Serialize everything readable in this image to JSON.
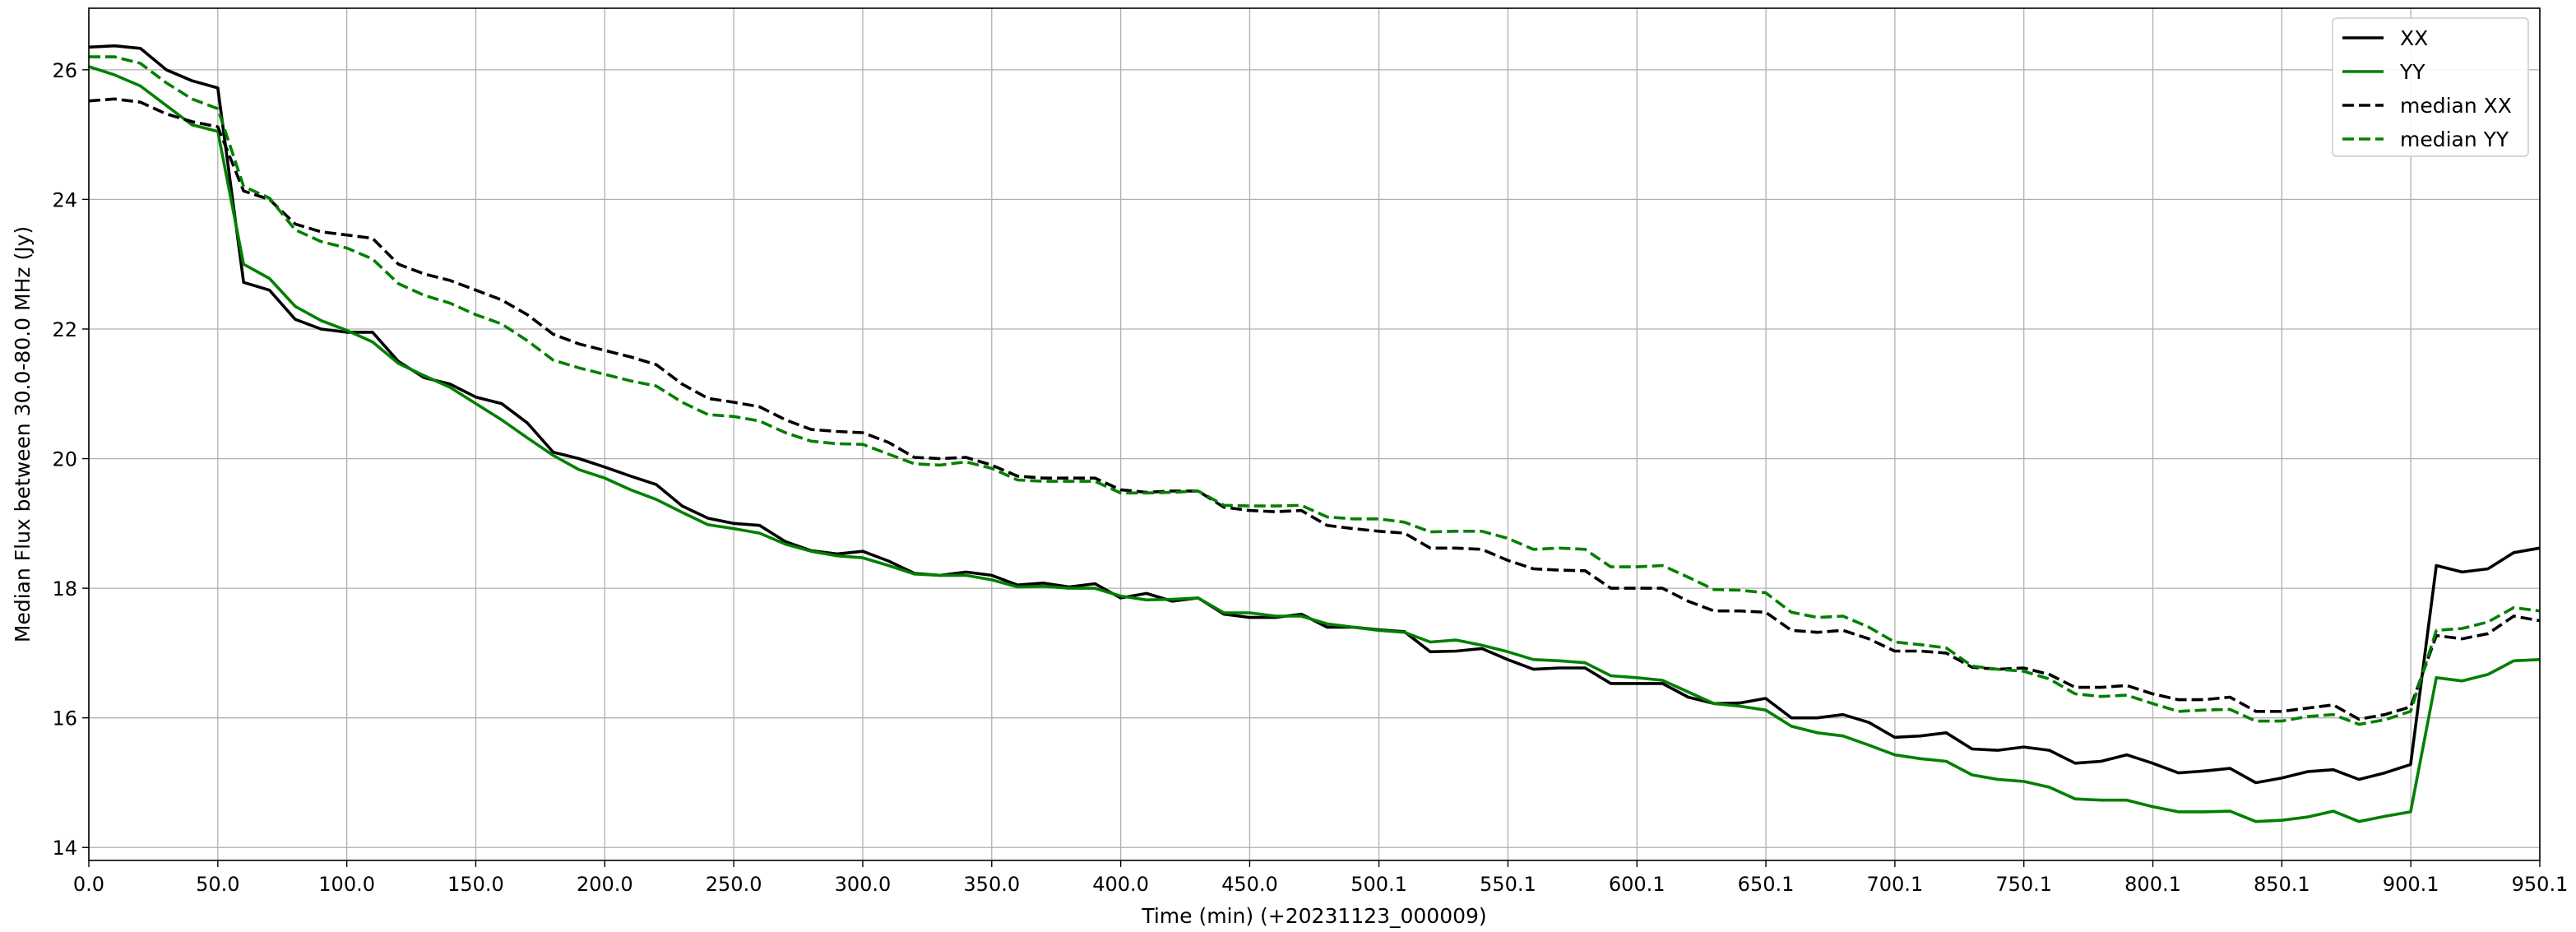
{
  "chart_data": {
    "type": "line",
    "xlabel": "Time (min) (+20231123_000009)",
    "ylabel": "Median Flux between 30.0-80.0 MHz  (Jy)",
    "xlim": [
      0,
      950.1
    ],
    "ylim": [
      13.8,
      26.95
    ],
    "grid": true,
    "legend_position": "top-right",
    "x_ticks": [
      0.0,
      50.0,
      100.0,
      150.0,
      200.0,
      250.0,
      300.0,
      350.0,
      400.0,
      450.0,
      500.1,
      550.1,
      600.1,
      650.1,
      700.1,
      750.1,
      800.1,
      850.1,
      900.1,
      950.1
    ],
    "x_tick_labels": [
      "0.0",
      "50.0",
      "100.0",
      "150.0",
      "200.0",
      "250.0",
      "300.0",
      "350.0",
      "400.0",
      "450.0",
      "500.1",
      "550.1",
      "600.1",
      "650.1",
      "700.1",
      "750.1",
      "800.1",
      "850.1",
      "900.1",
      "950.1"
    ],
    "y_ticks": [
      14,
      16,
      18,
      20,
      22,
      24,
      26
    ],
    "y_tick_labels": [
      "14",
      "16",
      "18",
      "20",
      "22",
      "24",
      "26"
    ],
    "x": [
      0,
      10,
      20,
      30,
      40,
      50,
      60,
      70,
      80,
      90,
      100,
      110,
      120,
      130,
      140,
      150,
      160,
      170,
      180,
      190,
      200,
      210,
      220,
      230,
      240,
      250,
      260,
      270,
      280,
      290,
      300,
      310,
      320,
      330,
      340,
      350,
      360,
      370,
      380,
      390,
      400,
      410,
      420,
      430,
      440,
      450,
      460,
      470,
      480,
      490,
      500,
      510,
      520,
      530,
      540,
      550,
      560,
      570,
      580,
      590,
      600,
      610,
      620,
      630,
      640,
      650,
      660,
      670,
      680,
      690,
      700,
      710,
      720,
      730,
      740,
      750,
      760,
      770,
      780,
      790,
      800,
      810,
      820,
      830,
      840,
      850,
      860,
      870,
      880,
      890,
      900,
      910,
      920,
      930,
      940,
      950
    ],
    "series": [
      {
        "name": "XX",
        "color": "#000000",
        "dash": "solid",
        "values": [
          26.35,
          26.37,
          26.33,
          26.0,
          25.83,
          25.72,
          22.72,
          22.6,
          22.15,
          22.0,
          21.95,
          21.95,
          21.5,
          21.25,
          21.15,
          20.95,
          20.85,
          20.55,
          20.1,
          20.0,
          19.87,
          19.73,
          19.6,
          19.27,
          19.08,
          19.0,
          18.97,
          18.72,
          18.58,
          18.53,
          18.57,
          18.42,
          18.23,
          18.2,
          18.25,
          18.2,
          18.05,
          18.08,
          18.02,
          18.07,
          17.85,
          17.92,
          17.8,
          17.85,
          17.6,
          17.55,
          17.55,
          17.6,
          17.4,
          17.4,
          17.36,
          17.33,
          17.02,
          17.03,
          17.07,
          16.9,
          16.75,
          16.77,
          16.77,
          16.53,
          16.53,
          16.53,
          16.32,
          16.22,
          16.23,
          16.3,
          16.0,
          16.0,
          16.05,
          15.93,
          15.7,
          15.72,
          15.77,
          15.52,
          15.5,
          15.55,
          15.5,
          15.3,
          15.33,
          15.43,
          15.3,
          15.15,
          15.18,
          15.22,
          15.0,
          15.07,
          15.17,
          15.2,
          15.05,
          15.15,
          15.28,
          18.35,
          18.25,
          18.3,
          18.55,
          18.62
        ]
      },
      {
        "name": "YY",
        "color": "#008000",
        "dash": "solid",
        "values": [
          26.05,
          25.92,
          25.75,
          25.45,
          25.15,
          25.05,
          23.0,
          22.78,
          22.35,
          22.13,
          21.98,
          21.8,
          21.47,
          21.28,
          21.1,
          20.85,
          20.6,
          20.32,
          20.05,
          19.83,
          19.7,
          19.52,
          19.37,
          19.17,
          18.98,
          18.92,
          18.85,
          18.68,
          18.57,
          18.5,
          18.47,
          18.35,
          18.22,
          18.2,
          18.2,
          18.13,
          18.02,
          18.03,
          18.0,
          18.0,
          17.88,
          17.82,
          17.83,
          17.85,
          17.62,
          17.62,
          17.57,
          17.57,
          17.45,
          17.4,
          17.35,
          17.32,
          17.17,
          17.2,
          17.12,
          17.02,
          16.9,
          16.88,
          16.85,
          16.65,
          16.62,
          16.58,
          16.4,
          16.22,
          16.18,
          16.12,
          15.87,
          15.77,
          15.72,
          15.58,
          15.43,
          15.37,
          15.33,
          15.12,
          15.05,
          15.02,
          14.93,
          14.75,
          14.73,
          14.73,
          14.63,
          14.55,
          14.55,
          14.56,
          14.4,
          14.42,
          14.47,
          14.56,
          14.4,
          14.48,
          14.55,
          16.62,
          16.57,
          16.67,
          16.88,
          16.9
        ]
      },
      {
        "name": "median XX",
        "color": "#000000",
        "dash": "dashed",
        "values": [
          25.52,
          25.55,
          25.5,
          25.32,
          25.2,
          25.12,
          24.13,
          24.0,
          23.62,
          23.5,
          23.45,
          23.4,
          23.0,
          22.85,
          22.75,
          22.6,
          22.45,
          22.22,
          21.92,
          21.77,
          21.67,
          21.57,
          21.45,
          21.15,
          20.93,
          20.87,
          20.8,
          20.6,
          20.45,
          20.42,
          20.4,
          20.25,
          20.02,
          20.0,
          20.02,
          19.9,
          19.73,
          19.7,
          19.7,
          19.7,
          19.52,
          19.48,
          19.5,
          19.5,
          19.25,
          19.2,
          19.18,
          19.2,
          18.97,
          18.92,
          18.88,
          18.85,
          18.62,
          18.62,
          18.6,
          18.43,
          18.3,
          18.28,
          18.27,
          18.0,
          18.0,
          18.0,
          17.8,
          17.65,
          17.65,
          17.63,
          17.35,
          17.32,
          17.35,
          17.22,
          17.03,
          17.03,
          17.0,
          16.78,
          16.75,
          16.77,
          16.67,
          16.47,
          16.47,
          16.5,
          16.37,
          16.28,
          16.28,
          16.32,
          16.1,
          16.1,
          16.15,
          16.2,
          15.98,
          16.05,
          16.17,
          17.27,
          17.22,
          17.3,
          17.57,
          17.5
        ]
      },
      {
        "name": "median YY",
        "color": "#008000",
        "dash": "dashed",
        "values": [
          26.2,
          26.2,
          26.1,
          25.8,
          25.55,
          25.4,
          24.2,
          24.02,
          23.53,
          23.35,
          23.25,
          23.08,
          22.7,
          22.52,
          22.4,
          22.22,
          22.08,
          21.82,
          21.52,
          21.4,
          21.3,
          21.2,
          21.12,
          20.87,
          20.68,
          20.65,
          20.58,
          20.4,
          20.27,
          20.23,
          20.22,
          20.07,
          19.92,
          19.9,
          19.95,
          19.85,
          19.67,
          19.65,
          19.65,
          19.65,
          19.47,
          19.47,
          19.48,
          19.5,
          19.28,
          19.27,
          19.27,
          19.28,
          19.1,
          19.07,
          19.07,
          19.02,
          18.87,
          18.88,
          18.88,
          18.77,
          18.6,
          18.62,
          18.6,
          18.33,
          18.33,
          18.35,
          18.17,
          17.98,
          17.97,
          17.93,
          17.63,
          17.55,
          17.57,
          17.4,
          17.17,
          17.13,
          17.08,
          16.8,
          16.75,
          16.72,
          16.6,
          16.37,
          16.33,
          16.35,
          16.22,
          16.1,
          16.12,
          16.13,
          15.95,
          15.95,
          16.02,
          16.05,
          15.9,
          15.97,
          16.1,
          17.35,
          17.38,
          17.48,
          17.7,
          17.65
        ]
      }
    ]
  }
}
